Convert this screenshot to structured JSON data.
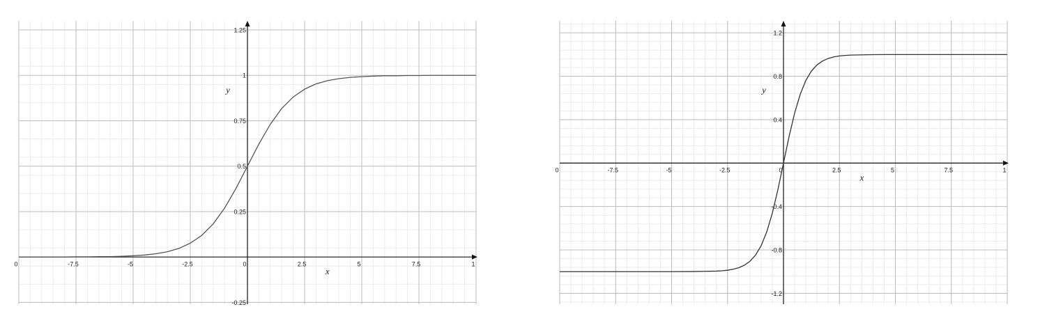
{
  "chart_data": [
    {
      "type": "line",
      "x_label": "x",
      "y_label": "y",
      "color": "#555555",
      "grid": true,
      "minor_grid": true,
      "xlim": [
        -10,
        10
      ],
      "ylim": [
        -0.26,
        1.3
      ],
      "xticks": [
        {
          "value": -10,
          "label": "0"
        },
        -7.5,
        -5,
        -2.5,
        0,
        2.5,
        5,
        7.5,
        {
          "value": 10,
          "label": "1"
        }
      ],
      "yticks": [
        -0.25,
        0.25,
        0.5,
        0.75,
        1,
        1.25
      ],
      "x": [
        -10,
        -9.5,
        -9,
        -8.5,
        -8,
        -7.5,
        -7,
        -6.5,
        -6,
        -5.5,
        -5,
        -4.5,
        -4,
        -3.5,
        -3,
        -2.5,
        -2,
        -1.5,
        -1,
        -0.5,
        0,
        0.5,
        1,
        1.5,
        2,
        2.5,
        3,
        3.5,
        4,
        4.5,
        5,
        5.5,
        6,
        6.5,
        7,
        7.5,
        8,
        8.5,
        9,
        9.5,
        10
      ],
      "values": [
        0.0,
        0.0,
        0.0,
        0.0,
        0.0,
        0.001,
        0.001,
        0.002,
        0.002,
        0.004,
        0.007,
        0.011,
        0.018,
        0.029,
        0.047,
        0.076,
        0.119,
        0.182,
        0.269,
        0.378,
        0.5,
        0.622,
        0.731,
        0.818,
        0.881,
        0.924,
        0.953,
        0.971,
        0.982,
        0.989,
        0.993,
        0.996,
        0.998,
        0.998,
        0.999,
        0.999,
        1,
        1,
        1,
        1,
        1
      ]
    },
    {
      "type": "line",
      "x_label": "x",
      "y_label": "y",
      "color": "#333333",
      "grid": true,
      "minor_grid": true,
      "xlim": [
        -10,
        10
      ],
      "ylim": [
        -1.3,
        1.31
      ],
      "xticks": [
        {
          "value": -10,
          "label": "0"
        },
        -7.5,
        -5,
        -2.5,
        0,
        2.5,
        5,
        7.5,
        {
          "value": 10,
          "label": "1"
        }
      ],
      "yticks": [
        -1.2,
        -0.8,
        -0.4,
        0.4,
        0.8,
        1.2
      ],
      "x": [
        -10,
        -9,
        -8,
        -7,
        -6,
        -5,
        -4,
        -3,
        -2.75,
        -2.5,
        -2.25,
        -2,
        -1.75,
        -1.5,
        -1.25,
        -1,
        -0.75,
        -0.5,
        -0.25,
        0,
        0.25,
        0.5,
        0.75,
        1,
        1.25,
        1.5,
        1.75,
        2,
        2.25,
        2.5,
        2.75,
        3,
        4,
        5,
        6,
        7,
        8,
        9,
        10
      ],
      "values": [
        -1,
        -1,
        -1,
        -1,
        -1,
        -1,
        -0.999,
        -0.995,
        -0.992,
        -0.987,
        -0.978,
        -0.964,
        -0.941,
        -0.905,
        -0.848,
        -0.762,
        -0.635,
        -0.462,
        -0.245,
        0,
        0.245,
        0.462,
        0.635,
        0.762,
        0.848,
        0.905,
        0.941,
        0.964,
        0.978,
        0.987,
        0.992,
        0.995,
        0.999,
        1,
        1,
        1,
        1,
        1,
        1
      ]
    }
  ]
}
